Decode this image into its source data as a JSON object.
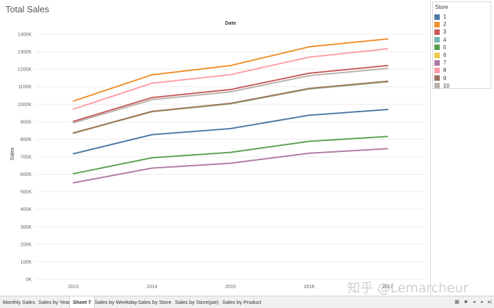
{
  "title": "Total Sales",
  "watermark": "知乎 @Lemarcheur",
  "chart_data": {
    "type": "line",
    "title": "",
    "top_axis_label": "Date",
    "xlabel": "",
    "ylabel": "Sales",
    "x": [
      "2013",
      "2014",
      "2015",
      "2016",
      "2017"
    ],
    "ylim": [
      0,
      1400000
    ],
    "yticks": [
      0,
      100000,
      200000,
      300000,
      400000,
      500000,
      600000,
      700000,
      800000,
      900000,
      1000000,
      1100000,
      1200000,
      1300000,
      1400000
    ],
    "ytick_labels": [
      "0K",
      "100K",
      "200K",
      "300K",
      "400K",
      "500K",
      "600K",
      "700K",
      "800K",
      "900K",
      "1000K",
      "1100K",
      "1200K",
      "1300K",
      "1400K"
    ],
    "grid": true,
    "legend_position": "top-right",
    "series": [
      {
        "name": "1",
        "color": "#4e79a7",
        "values": [
          717000,
          826000,
          861000,
          937000,
          970000
        ]
      },
      {
        "name": "2",
        "color": "#f28e2b",
        "values": [
          1018000,
          1168000,
          1221000,
          1328000,
          1373000
        ]
      },
      {
        "name": "3",
        "color": "#c85a5a",
        "values": [
          902000,
          1038000,
          1084000,
          1177000,
          1221000
        ]
      },
      {
        "name": "4",
        "color": "#76b7b2",
        "values": [
          834000,
          957000,
          1002000,
          1087000,
          1128000
        ]
      },
      {
        "name": "5",
        "color": "#59a14f",
        "values": [
          603000,
          694000,
          725000,
          788000,
          816000
        ]
      },
      {
        "name": "6",
        "color": "#edc948",
        "values": [
          835000,
          958000,
          1004000,
          1089000,
          1130000
        ]
      },
      {
        "name": "7",
        "color": "#b07aa1",
        "values": [
          551000,
          635000,
          663000,
          720000,
          746000
        ]
      },
      {
        "name": "8",
        "color": "#ff9da7",
        "values": [
          972000,
          1120000,
          1169000,
          1269000,
          1317000
        ]
      },
      {
        "name": "9",
        "color": "#9c755f",
        "values": [
          836000,
          959000,
          1005000,
          1090000,
          1131000
        ]
      },
      {
        "name": "10",
        "color": "#bab0ac",
        "values": [
          894000,
          1026000,
          1071000,
          1163000,
          1205000
        ]
      }
    ]
  },
  "legend": {
    "title": "Store"
  },
  "tabs": [
    {
      "label": "Monthly Sales",
      "active": false
    },
    {
      "label": "Sales by Year",
      "active": false
    },
    {
      "label": "Sheet 7",
      "active": true
    },
    {
      "label": "Sales by Weekday",
      "active": false
    },
    {
      "label": "Sales by Store",
      "active": false
    },
    {
      "label": "Sales by Store(pie)",
      "active": false
    },
    {
      "label": "Sales by Product",
      "active": false
    }
  ],
  "nav_icons": [
    "grid-view-icon",
    "list-view-icon",
    "first-sheet-icon",
    "prev-sheet-icon",
    "next-sheet-icon",
    "last-sheet-icon"
  ]
}
